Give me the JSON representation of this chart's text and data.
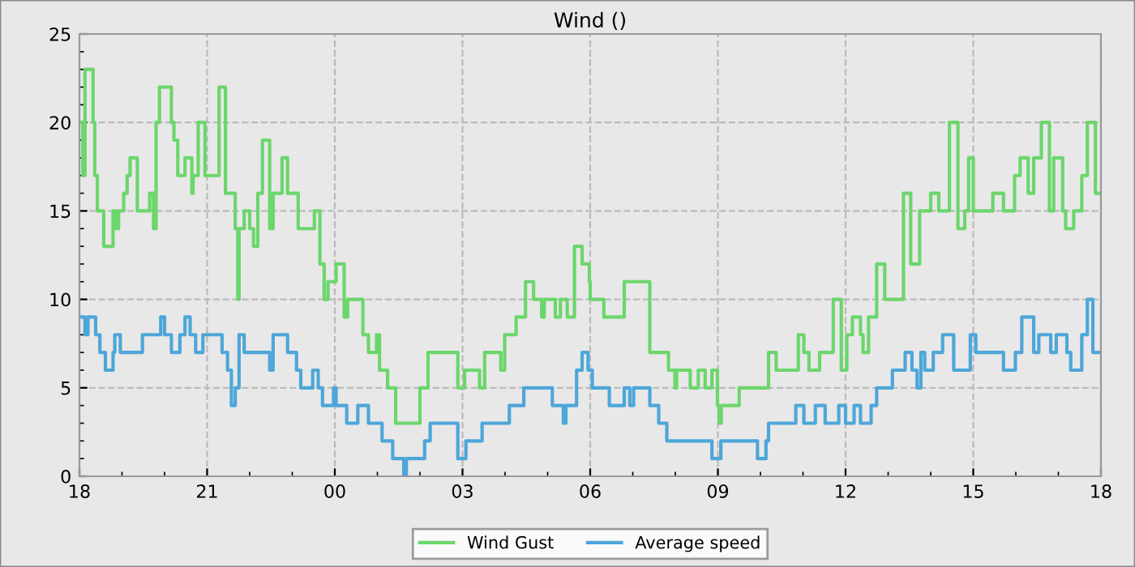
{
  "chart_data": {
    "type": "step",
    "title": "Wind ()",
    "xlim": [
      18,
      42
    ],
    "xticks": [
      {
        "value": 18,
        "label": "18"
      },
      {
        "value": 21,
        "label": "21"
      },
      {
        "value": 24,
        "label": "00"
      },
      {
        "value": 27,
        "label": "03"
      },
      {
        "value": 30,
        "label": "06"
      },
      {
        "value": 33,
        "label": "09"
      },
      {
        "value": 36,
        "label": "12"
      },
      {
        "value": 39,
        "label": "15"
      },
      {
        "value": 42,
        "label": "18"
      }
    ],
    "ylim": [
      0,
      25
    ],
    "yticks": [
      0,
      5,
      10,
      15,
      20,
      25
    ],
    "grid": true,
    "legend": "bottom",
    "series": [
      {
        "name": "Wind Gust",
        "color": "#6cd66c",
        "x": [
          18.0,
          18.08,
          18.13,
          18.32,
          18.36,
          18.42,
          18.57,
          18.79,
          18.86,
          18.92,
          19.04,
          19.12,
          19.19,
          19.36,
          19.65,
          19.74,
          19.8,
          19.88,
          20.16,
          20.22,
          20.31,
          20.48,
          20.64,
          20.67,
          20.79,
          20.95,
          21.28,
          21.43,
          21.66,
          21.72,
          21.75,
          21.87,
          22.0,
          22.09,
          22.19,
          22.3,
          22.47,
          22.55,
          22.76,
          22.89,
          23.14,
          23.52,
          23.65,
          23.75,
          23.84,
          24.03,
          24.22,
          24.3,
          24.66,
          24.79,
          24.98,
          25.05,
          25.24,
          25.43,
          26.0,
          26.19,
          26.89,
          27.05,
          27.4,
          27.52,
          27.9,
          27.99,
          28.26,
          28.48,
          28.67,
          28.86,
          28.92,
          29.18,
          29.3,
          29.46,
          29.63,
          29.81,
          29.98,
          30.0,
          30.32,
          30.8,
          31.4,
          31.84,
          31.99,
          32.03,
          32.35,
          32.54,
          32.7,
          32.86,
          32.99,
          33.03,
          33.08,
          33.5,
          34.19,
          34.37,
          34.89,
          35.02,
          35.14,
          35.39,
          35.71,
          35.9,
          36.03,
          36.16,
          36.35,
          36.41,
          36.54,
          36.73,
          36.92,
          37.36,
          37.53,
          37.74,
          38.0,
          38.19,
          38.44,
          38.64,
          38.8,
          38.89,
          39.0,
          39.46,
          39.71,
          39.97,
          40.1,
          40.29,
          40.42,
          40.6,
          40.79,
          40.89,
          41.1,
          41.17,
          41.36,
          41.55,
          41.68,
          41.87,
          42.0
        ],
        "values": [
          20,
          17,
          23,
          20,
          17,
          15,
          13,
          15,
          14,
          15,
          16,
          17,
          18,
          15,
          16,
          14,
          20,
          22,
          20,
          19,
          17,
          18,
          16,
          17,
          20,
          17,
          22,
          16,
          14,
          10,
          14,
          15,
          14,
          13,
          16,
          19,
          14,
          16,
          18,
          16,
          14,
          15,
          12,
          10,
          11,
          12,
          9,
          10,
          8,
          7,
          8,
          6,
          5,
          3,
          5,
          7,
          5,
          6,
          5,
          7,
          6,
          8,
          9,
          11,
          10,
          9,
          10,
          9,
          10,
          9,
          13,
          12,
          11,
          10,
          9,
          11,
          7,
          6,
          5,
          6,
          5,
          6,
          5,
          6,
          4,
          3,
          4,
          5,
          7,
          6,
          8,
          7,
          6,
          7,
          10,
          6,
          8,
          9,
          8,
          7,
          9,
          12,
          10,
          16,
          12,
          15,
          16,
          15,
          20,
          14,
          15,
          18,
          15,
          16,
          15,
          17,
          18,
          16,
          18,
          20,
          15,
          18,
          15,
          14,
          15,
          17,
          20,
          16,
          16
        ]
      },
      {
        "name": "Average speed",
        "color": "#4da6d9",
        "x": [
          18.0,
          18.13,
          18.2,
          18.38,
          18.48,
          18.61,
          18.79,
          18.83,
          18.96,
          19.48,
          19.91,
          20.0,
          20.16,
          20.36,
          20.48,
          20.6,
          20.73,
          20.9,
          21.35,
          21.48,
          21.57,
          21.66,
          21.75,
          21.87,
          22.47,
          22.55,
          22.89,
          23.1,
          23.2,
          23.48,
          23.61,
          23.71,
          23.97,
          24.03,
          24.28,
          24.54,
          24.79,
          25.11,
          25.36,
          25.62,
          25.68,
          26.11,
          26.24,
          26.89,
          27.08,
          27.46,
          28.1,
          28.44,
          29.11,
          29.37,
          29.43,
          29.68,
          29.81,
          29.95,
          30.05,
          30.45,
          30.8,
          30.93,
          31.02,
          31.4,
          31.61,
          31.8,
          32.86,
          33.07,
          33.93,
          34.13,
          34.19,
          34.83,
          35.02,
          35.29,
          35.52,
          35.84,
          36.0,
          36.2,
          36.35,
          36.6,
          36.73,
          37.1,
          37.4,
          37.56,
          37.68,
          37.77,
          37.86,
          38.06,
          38.28,
          38.54,
          38.93,
          39.06,
          39.71,
          39.99,
          40.14,
          40.42,
          40.54,
          40.82,
          40.95,
          41.2,
          41.29,
          41.55,
          41.68,
          41.81,
          42.0
        ],
        "values": [
          9,
          8,
          9,
          8,
          7,
          6,
          7,
          8,
          7,
          8,
          9,
          8,
          7,
          8,
          9,
          8,
          7,
          8,
          7,
          6,
          4,
          5,
          8,
          7,
          6,
          8,
          7,
          6,
          5,
          6,
          5,
          4,
          5,
          4,
          3,
          4,
          3,
          2,
          1,
          0,
          1,
          2,
          3,
          1,
          2,
          3,
          4,
          5,
          4,
          3,
          4,
          6,
          7,
          6,
          5,
          4,
          5,
          4,
          5,
          4,
          3,
          2,
          1,
          2,
          1,
          2,
          3,
          4,
          3,
          4,
          3,
          4,
          3,
          4,
          3,
          4,
          5,
          6,
          7,
          6,
          5,
          7,
          6,
          7,
          8,
          6,
          8,
          7,
          6,
          7,
          9,
          7,
          8,
          7,
          8,
          7,
          6,
          8,
          10,
          7,
          7
        ]
      }
    ]
  }
}
